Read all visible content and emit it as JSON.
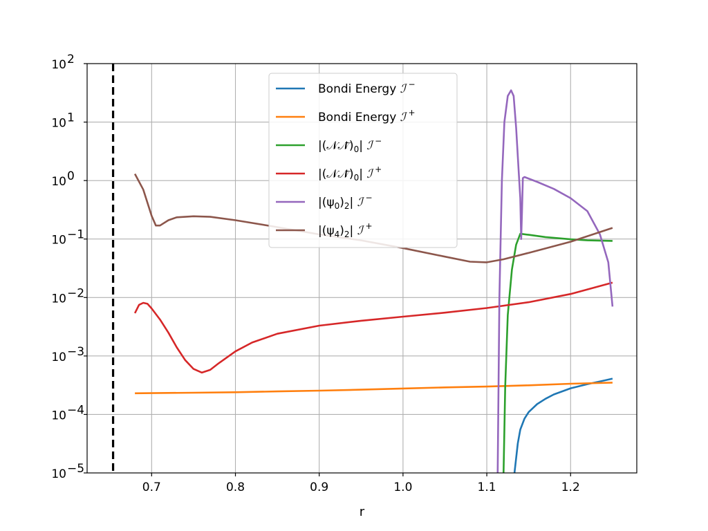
{
  "chart_data": {
    "type": "line",
    "xlabel": "r",
    "ylabel": "",
    "title": "",
    "xlim": [
      0.623,
      1.279
    ],
    "ylim": [
      1e-05,
      100
    ],
    "yscale": "log",
    "grid": true,
    "legend_position": "upper-center",
    "x_ticks": [
      0.7,
      0.8,
      0.9,
      1.0,
      1.1,
      1.2
    ],
    "x_tick_labels": [
      "0.7",
      "0.8",
      "0.9",
      "1.0",
      "1.1",
      "1.2"
    ],
    "y_ticks": [
      -5,
      -4,
      -3,
      -2,
      -1,
      0,
      1,
      2
    ],
    "y_tick_labels": [
      "10",
      "10",
      "10",
      "10",
      "10",
      "10",
      "10",
      "10"
    ],
    "y_tick_exponents": [
      "−5",
      "−4",
      "−3",
      "−2",
      "−1",
      "0",
      "1",
      "2"
    ],
    "vertical_line": {
      "x": 0.654,
      "style": "dashed",
      "color": "#000000"
    },
    "series": [
      {
        "name": "Bondi Energy ℐ⁻",
        "label_text": "Bondi Energy",
        "label_sub": "",
        "scri": "ℐ",
        "scri_sign": "−",
        "color": "#1f77b4",
        "points": [
          [
            1.133,
            1e-05
          ],
          [
            1.137,
            3.2e-05
          ],
          [
            1.14,
            5.5e-05
          ],
          [
            1.145,
            8.5e-05
          ],
          [
            1.15,
            0.00011
          ],
          [
            1.16,
            0.00015
          ],
          [
            1.17,
            0.000185
          ],
          [
            1.18,
            0.00022
          ],
          [
            1.2,
            0.00028
          ],
          [
            1.22,
            0.00033
          ],
          [
            1.24,
            0.00038
          ],
          [
            1.25,
            0.00041
          ]
        ]
      },
      {
        "name": "Bondi Energy ℐ⁺",
        "label_text": "Bondi Energy",
        "label_sub": "",
        "scri": "ℐ",
        "scri_sign": "+",
        "color": "#ff7f0e",
        "points": [
          [
            0.68,
            0.00023
          ],
          [
            0.75,
            0.000235
          ],
          [
            0.8,
            0.00024
          ],
          [
            0.85,
            0.000248
          ],
          [
            0.9,
            0.000255
          ],
          [
            0.95,
            0.000265
          ],
          [
            1.0,
            0.000278
          ],
          [
            1.05,
            0.00029
          ],
          [
            1.1,
            0.0003
          ],
          [
            1.15,
            0.000315
          ],
          [
            1.2,
            0.000335
          ],
          [
            1.25,
            0.00035
          ]
        ]
      },
      {
        "name": "|(𝒩𝒩̄)₀| ℐ⁻",
        "label_text": "|(𝒩𝒩̄)",
        "label_sub": "0",
        "label_tail": "|",
        "scri": "ℐ",
        "scri_sign": "−",
        "color": "#2ca02c",
        "points": [
          [
            1.12,
            1e-05
          ],
          [
            1.122,
            0.0003
          ],
          [
            1.125,
            0.005
          ],
          [
            1.13,
            0.03
          ],
          [
            1.135,
            0.08
          ],
          [
            1.14,
            0.123
          ],
          [
            1.15,
            0.118
          ],
          [
            1.17,
            0.108
          ],
          [
            1.2,
            0.099
          ],
          [
            1.22,
            0.095
          ],
          [
            1.25,
            0.093
          ]
        ]
      },
      {
        "name": "|(𝒩𝒩̄)₀| ℐ⁺",
        "label_text": "|(𝒩𝒩̄)",
        "label_sub": "0",
        "label_tail": "|",
        "scri": "ℐ",
        "scri_sign": "+",
        "color": "#d62728",
        "points": [
          [
            0.68,
            0.0054
          ],
          [
            0.685,
            0.0075
          ],
          [
            0.69,
            0.0081
          ],
          [
            0.695,
            0.0078
          ],
          [
            0.7,
            0.0065
          ],
          [
            0.71,
            0.0042
          ],
          [
            0.72,
            0.0025
          ],
          [
            0.73,
            0.0014
          ],
          [
            0.74,
            0.00085
          ],
          [
            0.75,
            0.0006
          ],
          [
            0.76,
            0.00052
          ],
          [
            0.77,
            0.00058
          ],
          [
            0.78,
            0.00075
          ],
          [
            0.8,
            0.0012
          ],
          [
            0.82,
            0.0017
          ],
          [
            0.85,
            0.0024
          ],
          [
            0.9,
            0.0033
          ],
          [
            0.95,
            0.004
          ],
          [
            1.0,
            0.0047
          ],
          [
            1.05,
            0.0055
          ],
          [
            1.1,
            0.0066
          ],
          [
            1.15,
            0.0083
          ],
          [
            1.2,
            0.0115
          ],
          [
            1.25,
            0.018
          ]
        ]
      },
      {
        "name": "|(ψ₀)₂| ℐ⁻",
        "label_text": "|(ψ",
        "label_sub": "0",
        "label_mid": ")",
        "label_sub2": "2",
        "label_tail": "|",
        "scri": "ℐ",
        "scri_sign": "−",
        "color": "#9467bd",
        "points": [
          [
            1.113,
            1e-05
          ],
          [
            1.115,
            0.01
          ],
          [
            1.118,
            1.0
          ],
          [
            1.121,
            10
          ],
          [
            1.125,
            28
          ],
          [
            1.129,
            35
          ],
          [
            1.132,
            28
          ],
          [
            1.135,
            8
          ],
          [
            1.138,
            1.5
          ],
          [
            1.14,
            0.5
          ],
          [
            1.141,
            0.1
          ],
          [
            1.142,
            0.3
          ],
          [
            1.143,
            1.1
          ],
          [
            1.145,
            1.15
          ],
          [
            1.16,
            0.95
          ],
          [
            1.18,
            0.72
          ],
          [
            1.2,
            0.5
          ],
          [
            1.22,
            0.3
          ],
          [
            1.235,
            0.12
          ],
          [
            1.245,
            0.04
          ],
          [
            1.25,
            0.007
          ]
        ]
      },
      {
        "name": "|(ψ₄)₂| ℐ⁺",
        "label_text": "|(ψ",
        "label_sub": "4",
        "label_mid": ")",
        "label_sub2": "2",
        "label_tail": "|",
        "scri": "ℐ",
        "scri_sign": "+",
        "color": "#8c564b",
        "points": [
          [
            0.68,
            1.3
          ],
          [
            0.69,
            0.7
          ],
          [
            0.7,
            0.25
          ],
          [
            0.705,
            0.17
          ],
          [
            0.71,
            0.17
          ],
          [
            0.72,
            0.21
          ],
          [
            0.73,
            0.235
          ],
          [
            0.75,
            0.245
          ],
          [
            0.77,
            0.24
          ],
          [
            0.8,
            0.21
          ],
          [
            0.85,
            0.16
          ],
          [
            0.9,
            0.12
          ],
          [
            0.95,
            0.095
          ],
          [
            1.0,
            0.07
          ],
          [
            1.05,
            0.05
          ],
          [
            1.08,
            0.041
          ],
          [
            1.1,
            0.04
          ],
          [
            1.12,
            0.045
          ],
          [
            1.15,
            0.058
          ],
          [
            1.2,
            0.09
          ],
          [
            1.25,
            0.155
          ]
        ]
      }
    ]
  }
}
